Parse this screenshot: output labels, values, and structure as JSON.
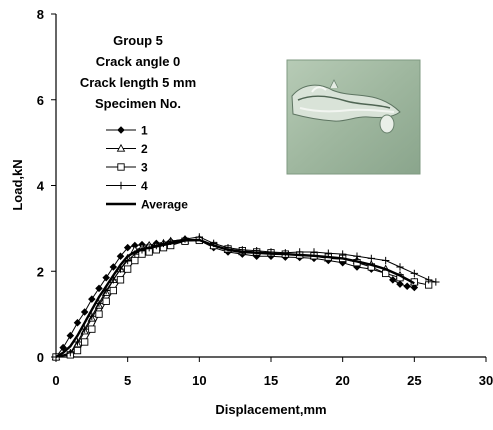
{
  "chart_data": {
    "type": "line",
    "xlabel": "Displacement,mm",
    "ylabel": "Load,kN",
    "xlim": [
      0,
      30
    ],
    "ylim": [
      0,
      8
    ],
    "xticks": [
      "0",
      "5",
      "10",
      "15",
      "20",
      "25",
      "30"
    ],
    "yticks": [
      "0",
      "2",
      "4",
      "6",
      "8"
    ],
    "grid": false,
    "annotations": [
      "Group 5",
      "Crack angle 0",
      "Crack length  5 mm",
      "Specimen No."
    ],
    "legend_position": "upper-left",
    "inset_image": "specimen-crack-photo",
    "series": [
      {
        "name": "1",
        "marker": "filled-diamond",
        "x": [
          0,
          0.5,
          1.0,
          1.5,
          2.0,
          2.5,
          3.0,
          3.5,
          4.0,
          4.5,
          5.0,
          5.5,
          6.0,
          6.5,
          7.0,
          8.0,
          9.0,
          10.0,
          11.0,
          12.0,
          13.0,
          14.0,
          15.0,
          16.0,
          17.0,
          18.0,
          19.0,
          20.0,
          21.0,
          22.0,
          23.0,
          23.5,
          24.0,
          24.5,
          25.0
        ],
        "y": [
          0,
          0.22,
          0.5,
          0.8,
          1.05,
          1.35,
          1.6,
          1.85,
          2.1,
          2.35,
          2.55,
          2.6,
          2.62,
          2.6,
          2.65,
          2.7,
          2.75,
          2.72,
          2.55,
          2.45,
          2.4,
          2.35,
          2.35,
          2.33,
          2.32,
          2.3,
          2.25,
          2.2,
          2.1,
          2.05,
          1.95,
          1.8,
          1.7,
          1.65,
          1.62
        ]
      },
      {
        "name": "2",
        "marker": "open-triangle",
        "x": [
          0,
          1.0,
          1.5,
          2.0,
          2.5,
          3.0,
          3.5,
          4.0,
          4.5,
          5.0,
          5.5,
          6.0,
          6.5,
          7.0,
          7.5,
          8.0,
          9.0,
          10.0,
          11.0,
          12.0,
          13.0,
          14.0,
          15.0,
          16.0,
          17.0,
          18.0,
          19.0,
          20.0,
          21.0,
          22.0,
          23.0,
          24.0,
          25.0
        ],
        "y": [
          0,
          0.08,
          0.3,
          0.6,
          0.9,
          1.2,
          1.5,
          1.8,
          2.05,
          2.3,
          2.5,
          2.55,
          2.6,
          2.6,
          2.65,
          2.7,
          2.72,
          2.75,
          2.6,
          2.5,
          2.45,
          2.45,
          2.42,
          2.4,
          2.38,
          2.35,
          2.3,
          2.28,
          2.25,
          2.15,
          2.05,
          1.9,
          1.75
        ]
      },
      {
        "name": "3",
        "marker": "open-square",
        "x": [
          0,
          1.0,
          1.5,
          2.0,
          2.5,
          3.0,
          3.5,
          4.0,
          4.5,
          5.0,
          5.5,
          6.0,
          6.5,
          7.0,
          7.5,
          8.0,
          9.0,
          10.0,
          11.0,
          12.0,
          13.0,
          14.0,
          15.0,
          16.0,
          17.0,
          18.0,
          19.0,
          20.0,
          21.0,
          22.0,
          23.0,
          24.0,
          25.0,
          26.0
        ],
        "y": [
          0,
          0.05,
          0.15,
          0.35,
          0.65,
          1.0,
          1.3,
          1.55,
          1.8,
          2.05,
          2.25,
          2.4,
          2.45,
          2.5,
          2.55,
          2.6,
          2.7,
          2.72,
          2.6,
          2.52,
          2.48,
          2.45,
          2.43,
          2.4,
          2.38,
          2.36,
          2.33,
          2.3,
          2.2,
          2.1,
          1.95,
          1.85,
          1.75,
          1.68
        ]
      },
      {
        "name": "4",
        "marker": "plus",
        "x": [
          0,
          1.0,
          1.5,
          2.0,
          2.5,
          3.0,
          3.5,
          4.0,
          4.5,
          5.0,
          5.5,
          6.0,
          6.5,
          7.0,
          7.5,
          8.0,
          9.0,
          10.0,
          11.0,
          12.0,
          13.0,
          14.0,
          15.0,
          16.0,
          17.0,
          18.0,
          19.0,
          20.0,
          21.0,
          22.0,
          23.0,
          24.0,
          25.0,
          26.0,
          26.5
        ],
        "y": [
          0,
          0.1,
          0.35,
          0.65,
          0.95,
          1.25,
          1.55,
          1.8,
          2.05,
          2.25,
          2.4,
          2.5,
          2.55,
          2.6,
          2.65,
          2.7,
          2.75,
          2.8,
          2.65,
          2.55,
          2.5,
          2.48,
          2.45,
          2.43,
          2.45,
          2.45,
          2.42,
          2.4,
          2.35,
          2.3,
          2.25,
          2.1,
          1.95,
          1.8,
          1.75
        ]
      },
      {
        "name": "Average",
        "marker": "none",
        "x": [
          0,
          0.5,
          1.0,
          1.5,
          2.0,
          2.5,
          3.0,
          3.5,
          4.0,
          4.5,
          5.0,
          5.5,
          6.0,
          7.0,
          8.0,
          9.0,
          10.0,
          11.0,
          12.0,
          13.0,
          14.0,
          15.0,
          16.0,
          17.0,
          18.0,
          19.0,
          20.0,
          21.0,
          22.0,
          23.0,
          24.0,
          25.0
        ],
        "y": [
          0,
          0.1,
          0.25,
          0.5,
          0.8,
          1.1,
          1.4,
          1.65,
          1.9,
          2.15,
          2.35,
          2.45,
          2.52,
          2.58,
          2.65,
          2.72,
          2.73,
          2.6,
          2.5,
          2.45,
          2.43,
          2.41,
          2.4,
          2.38,
          2.36,
          2.33,
          2.3,
          2.23,
          2.15,
          2.05,
          1.9,
          1.72
        ]
      }
    ]
  }
}
